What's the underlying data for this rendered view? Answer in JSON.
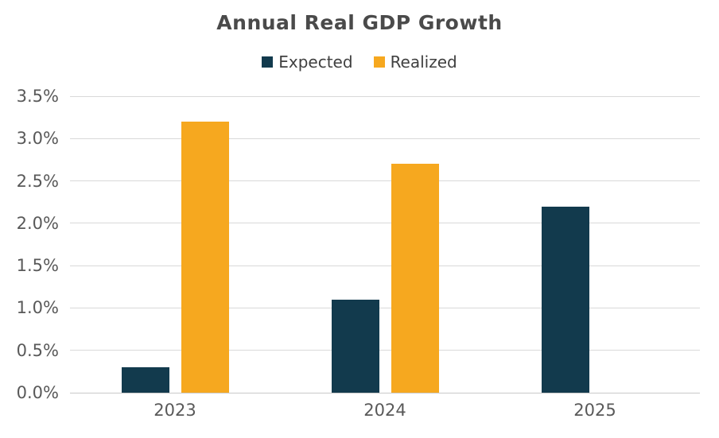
{
  "title": "Annual Real GDP Growth",
  "legend": [
    {
      "label": "Expected",
      "color": "#123a4d"
    },
    {
      "label": "Realized",
      "color": "#f6a81f"
    }
  ],
  "chart_data": {
    "type": "bar",
    "title": "Annual Real GDP Growth",
    "categories": [
      "2023",
      "2024",
      "2025"
    ],
    "series": [
      {
        "name": "Expected",
        "color": "#123a4d",
        "values": [
          0.3,
          1.1,
          2.2
        ]
      },
      {
        "name": "Realized",
        "color": "#f6a81f",
        "values": [
          3.2,
          2.7,
          null
        ]
      }
    ],
    "xlabel": "",
    "ylabel": "",
    "ylim": [
      0,
      3.5
    ],
    "ytick_step": 0.5,
    "yticks": [
      "0.0%",
      "0.5%",
      "1.0%",
      "1.5%",
      "2.0%",
      "2.5%",
      "3.0%",
      "3.5%"
    ],
    "grid": true,
    "legend_position": "top"
  },
  "colors": {
    "gridline": "#d9d9d9",
    "axis_line": "#c9c9c9",
    "tick_text": "#595959",
    "title_text": "#4a4a4a",
    "background": "#ffffff"
  }
}
